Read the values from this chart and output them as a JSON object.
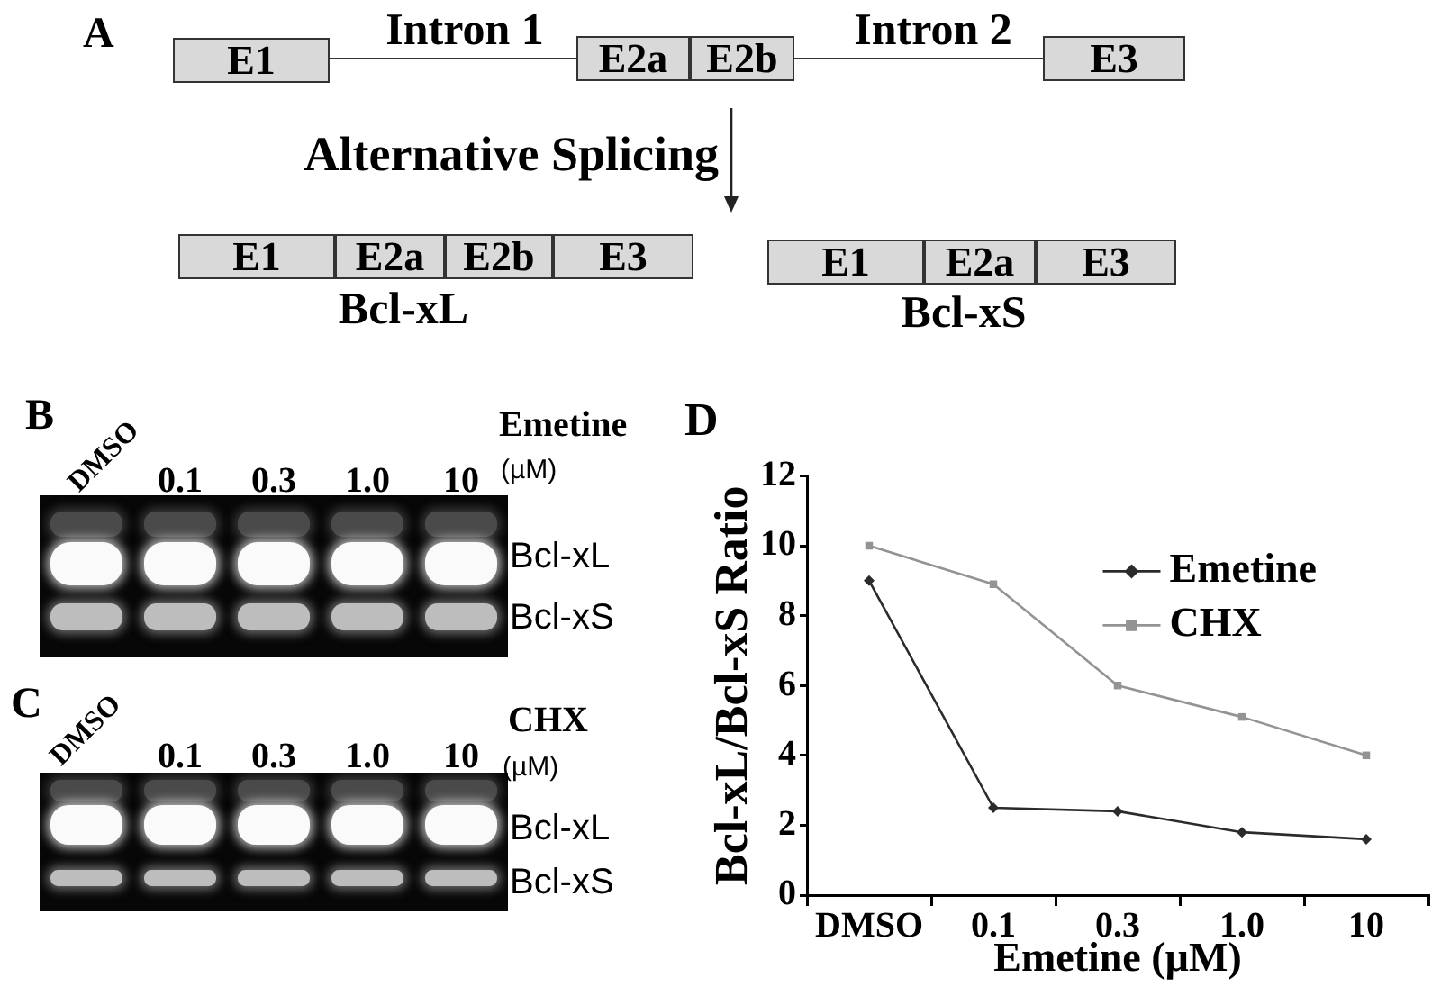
{
  "chart_data": [
    {
      "type": "other",
      "title": "A",
      "annotations": [
        "E1",
        "Intron 1",
        "E2a",
        "E2b",
        "Intron 2",
        "E3",
        "Alternative Splicing",
        "E1",
        "E2a",
        "E2b",
        "E3",
        "Bcl-xL",
        "E1",
        "E2a",
        "E3",
        "Bcl-xS"
      ]
    },
    {
      "type": "other",
      "title": "B",
      "categories": [
        "DMSO",
        "0.1",
        "0.3",
        "1.0",
        "10"
      ],
      "annotations": [
        "Emetine",
        "(µM)",
        "Bcl-xL",
        "Bcl-xS"
      ]
    },
    {
      "type": "other",
      "title": "C",
      "categories": [
        "DMSO",
        "0.1",
        "0.3",
        "1.0",
        "10"
      ],
      "annotations": [
        "CHX",
        "(µM)",
        "Bcl-xL",
        "Bcl-xS"
      ]
    },
    {
      "type": "line",
      "title": "D",
      "xlabel": "Emetine (µM)",
      "ylabel": "Bcl-xL/Bcl-xS Ratio",
      "categories": [
        "DMSO",
        "0.1",
        "0.3",
        "1.0",
        "10"
      ],
      "series": [
        {
          "name": "Emetine",
          "color": "#2b2b2b",
          "marker": "diamond",
          "values": [
            9,
            2.5,
            2.4,
            1.8,
            1.6
          ]
        },
        {
          "name": "CHX",
          "color": "#939393",
          "marker": "square",
          "values": [
            10,
            8.9,
            6,
            5.1,
            4
          ]
        }
      ],
      "ylim": [
        0,
        12
      ],
      "yticks": [
        0,
        2,
        4,
        6,
        8,
        10,
        12
      ],
      "legend": "top right"
    }
  ]
}
